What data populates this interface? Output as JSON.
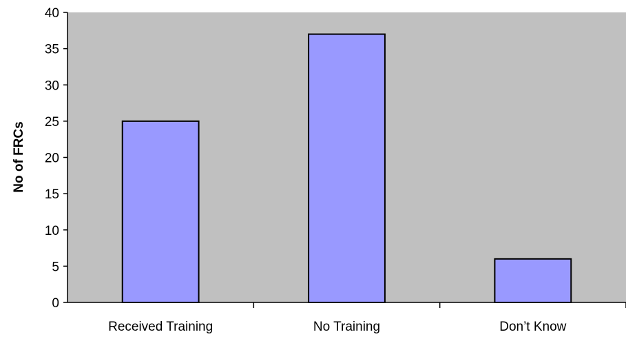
{
  "chart_data": {
    "type": "bar",
    "categories": [
      "Received Training",
      "No Training",
      "Don’t Know"
    ],
    "values": [
      25,
      37,
      6
    ],
    "title": "",
    "xlabel": "",
    "ylabel": "No of FRCs",
    "ylim": [
      0,
      40
    ],
    "yticks": [
      0,
      5,
      10,
      15,
      20,
      25,
      30,
      35,
      40
    ],
    "grid": false,
    "legend": "none",
    "colors": {
      "plot_background": "#c0c0c0",
      "bar_fill": "#9999ff",
      "bar_stroke": "#000000",
      "axis": "#000000"
    }
  }
}
